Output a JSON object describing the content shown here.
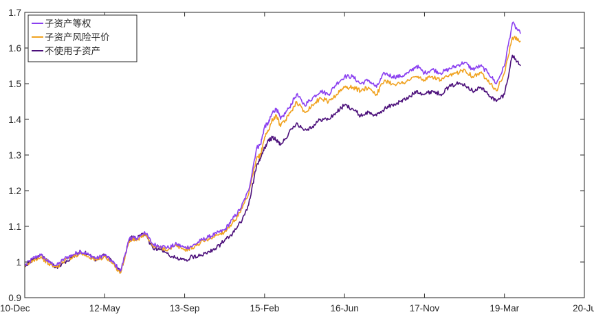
{
  "chart_data": {
    "type": "line",
    "title": "",
    "xlabel": "",
    "ylabel": "",
    "x_tick_labels": [
      "10-Dec",
      "12-May",
      "13-Sep",
      "15-Feb",
      "16-Jun",
      "17-Nov",
      "19-Mar",
      "20-Ju"
    ],
    "x_tick_index": [
      0,
      1,
      2,
      3,
      4,
      5,
      6,
      7
    ],
    "xlim": [
      0,
      7
    ],
    "y_ticks": [
      0.9,
      1.0,
      1.1,
      1.2,
      1.3,
      1.4,
      1.5,
      1.6,
      1.7
    ],
    "y_tick_labels": [
      "0.9",
      "1",
      "1.1",
      "1.2",
      "1.3",
      "1.4",
      "1.5",
      "1.6",
      "1.7"
    ],
    "ylim": [
      0.9,
      1.7
    ],
    "grid": false,
    "legend_position": "top-left",
    "series": [
      {
        "name": "子资产等权",
        "color": "#8a3ff0",
        "x": [
          0.0,
          0.1,
          0.2,
          0.3,
          0.4,
          0.5,
          0.6,
          0.7,
          0.8,
          0.9,
          1.0,
          1.1,
          1.2,
          1.3,
          1.35,
          1.4,
          1.5,
          1.6,
          1.7,
          1.8,
          1.9,
          2.0,
          2.1,
          2.2,
          2.3,
          2.4,
          2.5,
          2.6,
          2.7,
          2.8,
          2.9,
          2.95,
          3.0,
          3.05,
          3.1,
          3.15,
          3.2,
          3.3,
          3.4,
          3.5,
          3.6,
          3.7,
          3.8,
          3.9,
          4.0,
          4.1,
          4.2,
          4.3,
          4.4,
          4.5,
          4.6,
          4.7,
          4.8,
          4.9,
          5.0,
          5.1,
          5.2,
          5.3,
          5.4,
          5.5,
          5.6,
          5.7,
          5.8,
          5.9,
          6.0,
          6.1,
          6.2
        ],
        "y": [
          0.99,
          1.01,
          1.02,
          1.0,
          0.99,
          1.01,
          1.02,
          1.03,
          1.02,
          1.01,
          1.02,
          1.0,
          0.975,
          1.06,
          1.07,
          1.065,
          1.085,
          1.05,
          1.045,
          1.04,
          1.05,
          1.04,
          1.045,
          1.06,
          1.07,
          1.08,
          1.09,
          1.12,
          1.15,
          1.2,
          1.32,
          1.33,
          1.38,
          1.39,
          1.42,
          1.43,
          1.4,
          1.43,
          1.47,
          1.44,
          1.46,
          1.48,
          1.47,
          1.5,
          1.52,
          1.52,
          1.5,
          1.51,
          1.49,
          1.53,
          1.52,
          1.52,
          1.53,
          1.55,
          1.53,
          1.54,
          1.53,
          1.54,
          1.55,
          1.56,
          1.54,
          1.55,
          1.53,
          1.5,
          1.55,
          1.67,
          1.64
        ]
      },
      {
        "name": "子资产风险平价",
        "color": "#f0a21f",
        "x": [
          0.0,
          0.1,
          0.2,
          0.3,
          0.4,
          0.5,
          0.6,
          0.7,
          0.8,
          0.9,
          1.0,
          1.1,
          1.2,
          1.3,
          1.35,
          1.4,
          1.5,
          1.6,
          1.7,
          1.8,
          1.9,
          2.0,
          2.1,
          2.2,
          2.3,
          2.4,
          2.5,
          2.6,
          2.7,
          2.8,
          2.9,
          2.95,
          3.0,
          3.05,
          3.1,
          3.15,
          3.2,
          3.3,
          3.4,
          3.5,
          3.6,
          3.7,
          3.8,
          3.9,
          4.0,
          4.1,
          4.2,
          4.3,
          4.4,
          4.5,
          4.6,
          4.7,
          4.8,
          4.9,
          5.0,
          5.1,
          5.2,
          5.3,
          5.4,
          5.5,
          5.6,
          5.7,
          5.8,
          5.9,
          6.0,
          6.1,
          6.2
        ],
        "y": [
          0.985,
          1.005,
          1.015,
          0.995,
          0.985,
          1.005,
          1.015,
          1.025,
          1.015,
          1.005,
          1.015,
          0.995,
          0.97,
          1.055,
          1.065,
          1.06,
          1.08,
          1.045,
          1.04,
          1.035,
          1.045,
          1.035,
          1.04,
          1.055,
          1.065,
          1.075,
          1.085,
          1.11,
          1.14,
          1.19,
          1.29,
          1.3,
          1.35,
          1.37,
          1.4,
          1.41,
          1.38,
          1.41,
          1.45,
          1.42,
          1.44,
          1.46,
          1.45,
          1.47,
          1.49,
          1.49,
          1.48,
          1.49,
          1.47,
          1.51,
          1.5,
          1.5,
          1.51,
          1.52,
          1.51,
          1.52,
          1.51,
          1.52,
          1.53,
          1.54,
          1.52,
          1.53,
          1.51,
          1.48,
          1.53,
          1.63,
          1.62
        ]
      },
      {
        "name": "不使用子资产",
        "color": "#4b0f7a",
        "x": [
          0.0,
          0.1,
          0.2,
          0.3,
          0.4,
          0.5,
          0.6,
          0.7,
          0.8,
          0.9,
          1.0,
          1.1,
          1.2,
          1.3,
          1.35,
          1.4,
          1.5,
          1.6,
          1.7,
          1.8,
          1.9,
          2.0,
          2.1,
          2.2,
          2.3,
          2.4,
          2.5,
          2.6,
          2.7,
          2.8,
          2.9,
          2.95,
          3.0,
          3.05,
          3.1,
          3.15,
          3.2,
          3.3,
          3.4,
          3.5,
          3.6,
          3.7,
          3.8,
          3.9,
          4.0,
          4.1,
          4.2,
          4.3,
          4.4,
          4.5,
          4.6,
          4.7,
          4.8,
          4.9,
          5.0,
          5.1,
          5.2,
          5.3,
          5.4,
          5.5,
          5.6,
          5.7,
          5.8,
          5.9,
          6.0,
          6.1,
          6.2
        ],
        "y": [
          0.99,
          1.005,
          1.02,
          1.0,
          0.985,
          1.0,
          1.015,
          1.03,
          1.02,
          1.005,
          1.02,
          1.0,
          0.97,
          1.06,
          1.07,
          1.065,
          1.08,
          1.04,
          1.035,
          1.02,
          1.01,
          1.005,
          1.015,
          1.02,
          1.03,
          1.04,
          1.06,
          1.08,
          1.11,
          1.16,
          1.27,
          1.29,
          1.32,
          1.34,
          1.35,
          1.34,
          1.33,
          1.36,
          1.39,
          1.37,
          1.38,
          1.4,
          1.4,
          1.42,
          1.44,
          1.43,
          1.41,
          1.42,
          1.41,
          1.43,
          1.44,
          1.45,
          1.46,
          1.48,
          1.47,
          1.48,
          1.47,
          1.49,
          1.5,
          1.5,
          1.48,
          1.49,
          1.47,
          1.45,
          1.47,
          1.58,
          1.55
        ]
      }
    ]
  }
}
